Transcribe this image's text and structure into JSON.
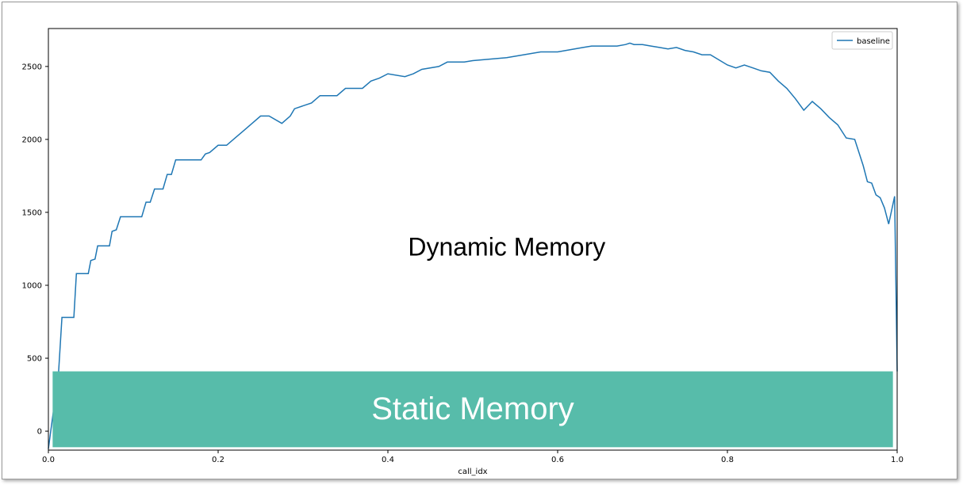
{
  "chart_data": {
    "type": "line",
    "title": "",
    "xlabel": "call_idx",
    "ylabel": "",
    "xlim": [
      0.0,
      1.0
    ],
    "ylim": [
      -130,
      2760
    ],
    "xticks": [
      0.0,
      0.2,
      0.4,
      0.6,
      0.8,
      1.0
    ],
    "xtick_labels": [
      "0.0",
      "0.2",
      "0.4",
      "0.6",
      "0.8",
      "1.0"
    ],
    "yticks": [
      0,
      500,
      1000,
      1500,
      2000,
      2500
    ],
    "ytick_labels": [
      "0",
      "500",
      "1000",
      "1500",
      "2000",
      "2500"
    ],
    "grid": false,
    "legend": {
      "position": "top-right",
      "entries": [
        "baseline"
      ]
    },
    "series": [
      {
        "name": "baseline",
        "color": "#1f77b4",
        "x": [
          0.0,
          0.012,
          0.016,
          0.03,
          0.033,
          0.047,
          0.05,
          0.055,
          0.058,
          0.072,
          0.075,
          0.08,
          0.085,
          0.09,
          0.11,
          0.115,
          0.12,
          0.125,
          0.135,
          0.14,
          0.145,
          0.15,
          0.18,
          0.185,
          0.19,
          0.2,
          0.21,
          0.22,
          0.23,
          0.24,
          0.25,
          0.26,
          0.275,
          0.285,
          0.29,
          0.31,
          0.32,
          0.33,
          0.34,
          0.35,
          0.37,
          0.38,
          0.39,
          0.4,
          0.42,
          0.43,
          0.44,
          0.46,
          0.47,
          0.49,
          0.5,
          0.54,
          0.56,
          0.58,
          0.59,
          0.6,
          0.62,
          0.63,
          0.64,
          0.66,
          0.67,
          0.68,
          0.685,
          0.69,
          0.7,
          0.71,
          0.72,
          0.73,
          0.74,
          0.75,
          0.76,
          0.77,
          0.78,
          0.8,
          0.81,
          0.82,
          0.83,
          0.84,
          0.85,
          0.86,
          0.87,
          0.88,
          0.89,
          0.9,
          0.91,
          0.92,
          0.93,
          0.94,
          0.95,
          0.96,
          0.965,
          0.97,
          0.975,
          0.98,
          0.985,
          0.99,
          0.993,
          0.997,
          1.0
        ],
        "y": [
          -120,
          400,
          780,
          780,
          1080,
          1080,
          1170,
          1180,
          1270,
          1270,
          1370,
          1380,
          1470,
          1470,
          1470,
          1570,
          1570,
          1660,
          1660,
          1760,
          1760,
          1860,
          1860,
          1900,
          1910,
          1960,
          1960,
          2010,
          2060,
          2110,
          2160,
          2160,
          2110,
          2160,
          2210,
          2250,
          2300,
          2300,
          2300,
          2350,
          2350,
          2400,
          2420,
          2450,
          2430,
          2450,
          2480,
          2500,
          2530,
          2530,
          2540,
          2560,
          2580,
          2600,
          2600,
          2600,
          2620,
          2630,
          2640,
          2640,
          2640,
          2650,
          2660,
          2650,
          2650,
          2640,
          2630,
          2620,
          2630,
          2610,
          2600,
          2580,
          2580,
          2510,
          2490,
          2510,
          2490,
          2470,
          2460,
          2400,
          2350,
          2280,
          2200,
          2260,
          2210,
          2150,
          2100,
          2010,
          2000,
          1820,
          1710,
          1700,
          1620,
          1600,
          1530,
          1420,
          1500,
          1610,
          410
        ]
      }
    ],
    "annotations": [
      {
        "text": "Dynamic Memory",
        "x": 0.54,
        "y": 1250
      },
      {
        "text": "Static Memory",
        "x": 0.5,
        "y": 140
      }
    ],
    "static_band": {
      "y_from": -110,
      "y_to": 410,
      "x_from": 0.005,
      "x_to": 0.995,
      "color": "#57bcaa"
    }
  }
}
